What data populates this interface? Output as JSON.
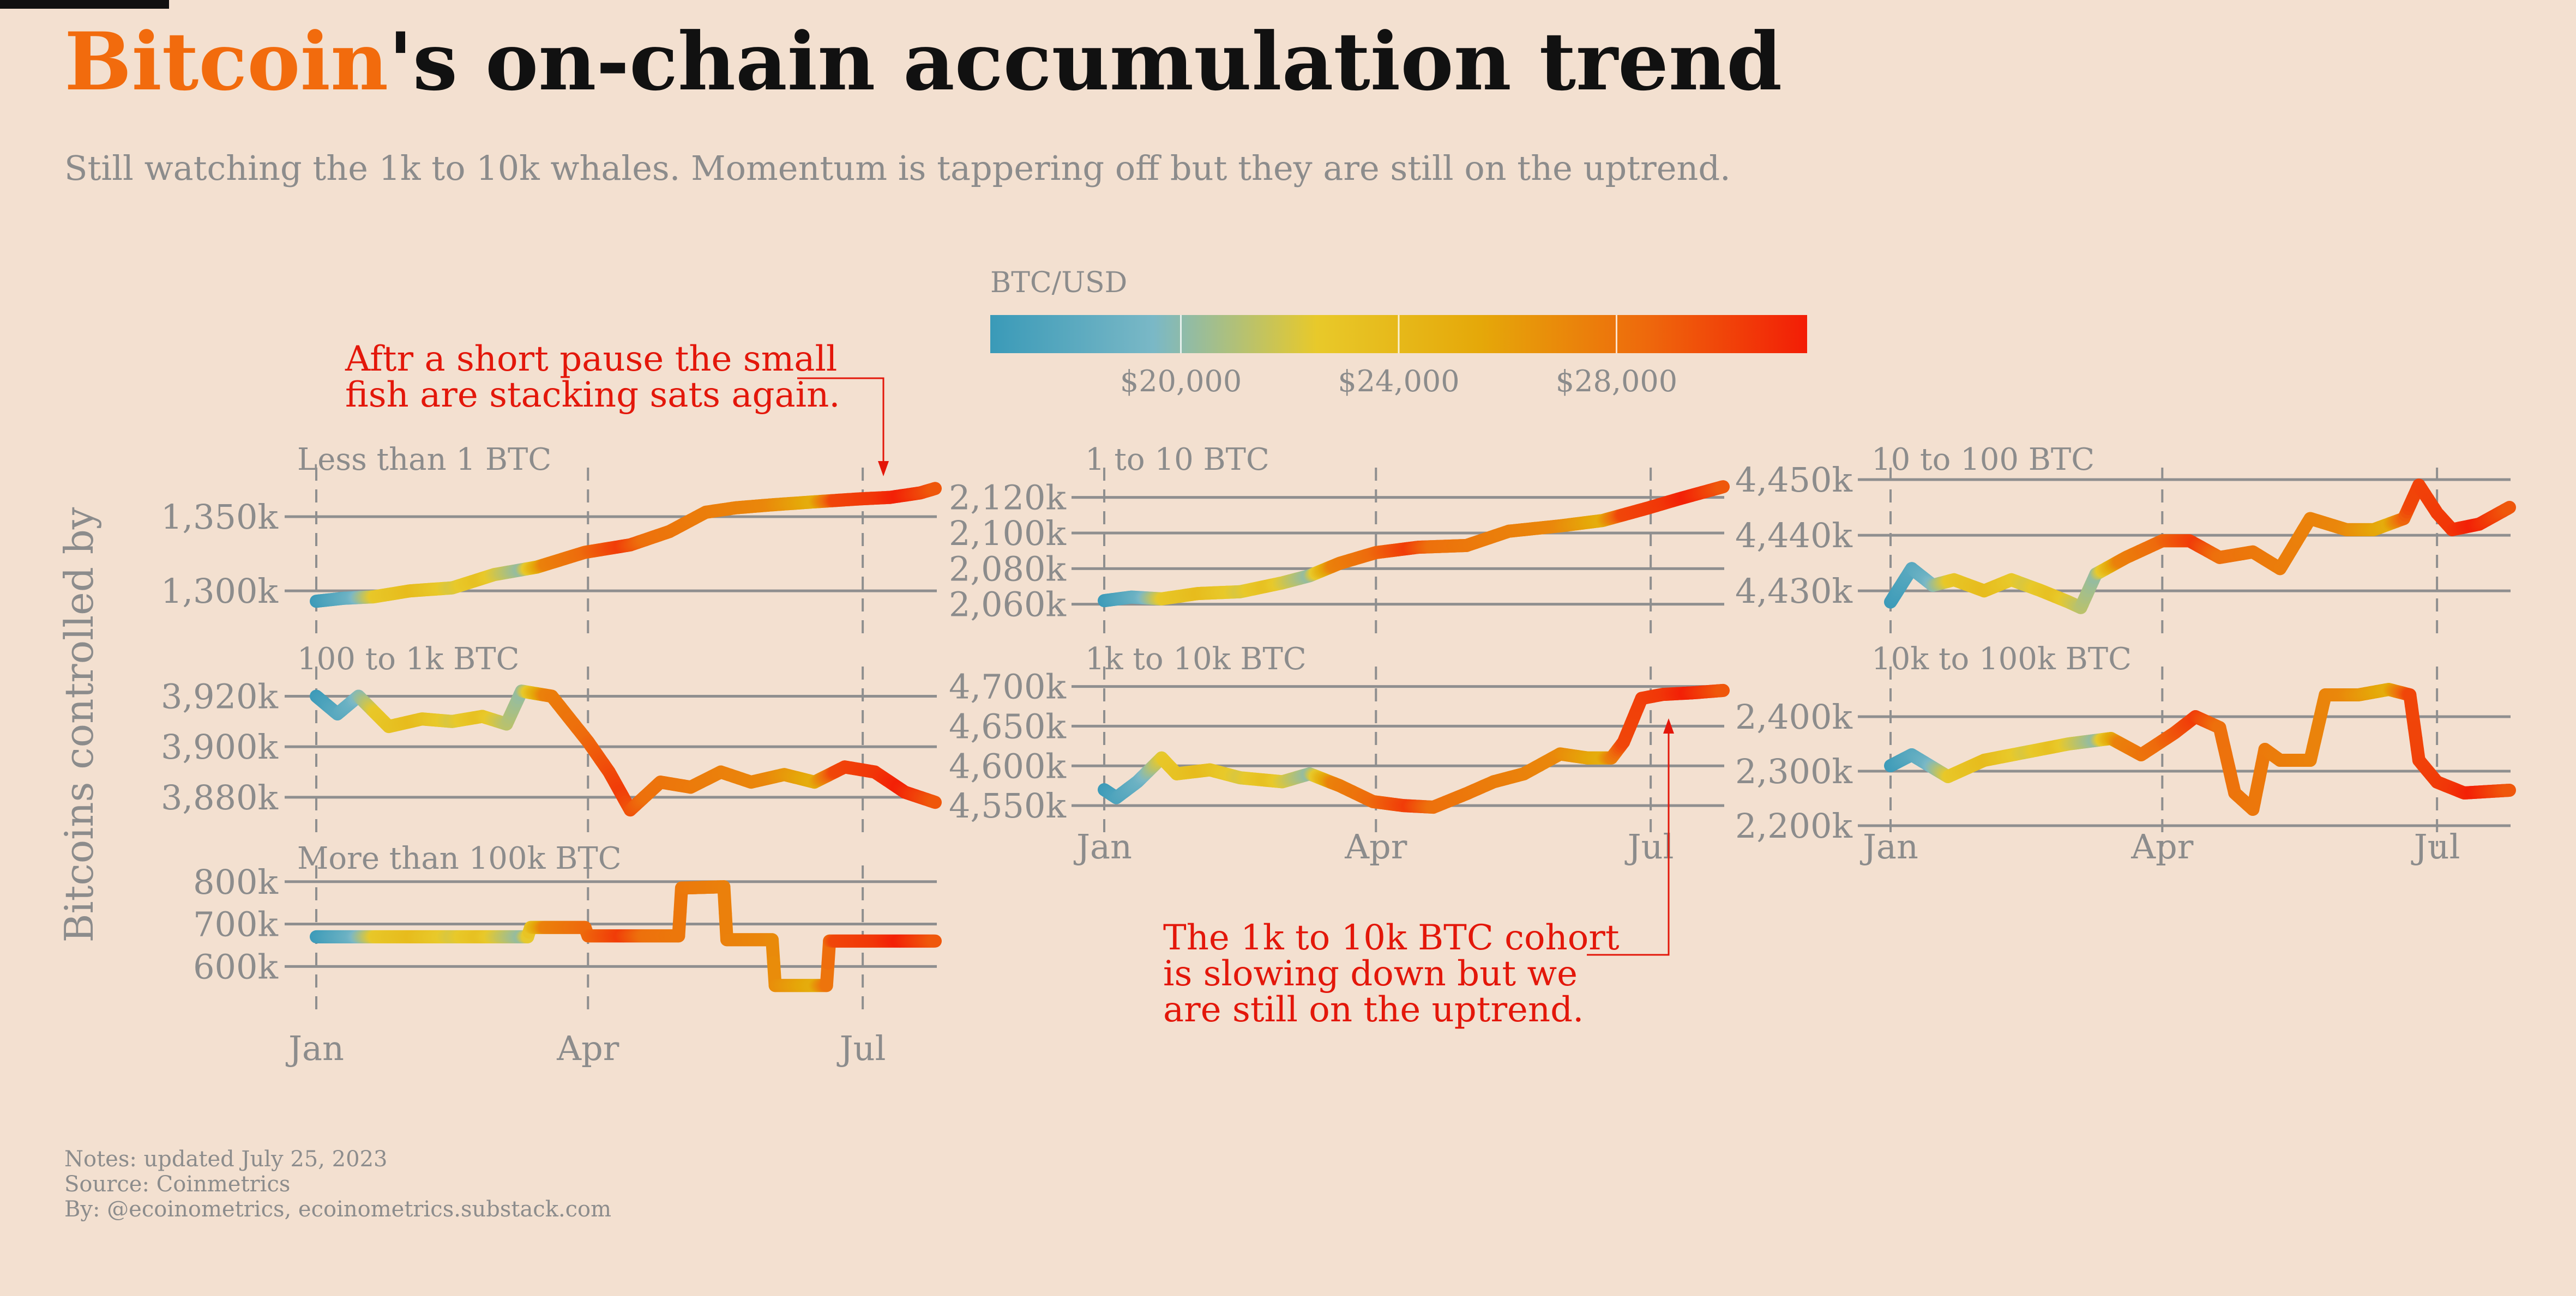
{
  "header": {
    "title_accent": "Bitcoin",
    "title_rest": "'s on-chain accumulation trend",
    "subtitle": "Still watching the 1k to 10k whales. Momentum is tappering off but they are still on the uptrend."
  },
  "notes": {
    "updated": "Notes: updated July 25, 2023",
    "source": "Source: Coinmetrics",
    "by": "By: @ecoinometrics, ecoinometrics.substack.com"
  },
  "colors": {
    "background": "#f3e0d0",
    "accent": "#f26b0d",
    "annotation": "#e3170a",
    "gradient": [
      "#3a9ab8",
      "#7ab8c6",
      "#e8c92a",
      "#e5a809",
      "#ee6a0c",
      "#f31d06"
    ]
  },
  "chart_data": {
    "type": "line",
    "ylabel": "Bitcoins controlled by",
    "x_ticks": [
      "Jan",
      "Apr",
      "Jul"
    ],
    "x_range": [
      "2023-01-01",
      "2023-07-25"
    ],
    "colorbar": {
      "title": "BTC/USD",
      "range": [
        16500,
        31500
      ],
      "ticks": [
        "$20,000",
        "$24,000",
        "$28,000"
      ],
      "tick_values": [
        20000,
        24000,
        28000
      ]
    },
    "price_waypoints": {
      "dates": [
        "2023-01-01",
        "2023-01-13",
        "2023-01-21",
        "2023-02-02",
        "2023-02-15",
        "2023-02-24",
        "2023-03-10",
        "2023-03-14",
        "2023-03-18",
        "2023-03-31",
        "2023-04-12",
        "2023-04-20",
        "2023-05-10",
        "2023-05-31",
        "2023-06-15",
        "2023-06-22",
        "2023-07-06",
        "2023-07-13",
        "2023-07-25"
      ],
      "btc_usd": [
        16600,
        18800,
        22700,
        23700,
        22100,
        23300,
        20200,
        24200,
        27400,
        28400,
        30300,
        28200,
        27600,
        27100,
        25100,
        29900,
        30500,
        31400,
        29200
      ]
    },
    "panels": [
      {
        "name": "Less than 1 BTC",
        "ylim": [
          1285,
          1375
        ],
        "y_ticks": [
          "1,300k",
          "1,350k"
        ],
        "y_tick_values": [
          1300,
          1350
        ],
        "dates": [
          "2023-01-01",
          "2023-01-10",
          "2023-01-20",
          "2023-02-01",
          "2023-02-15",
          "2023-03-01",
          "2023-03-15",
          "2023-03-31",
          "2023-04-15",
          "2023-04-28",
          "2023-05-10",
          "2023-05-20",
          "2023-06-01",
          "2023-06-15",
          "2023-06-30",
          "2023-07-10",
          "2023-07-20",
          "2023-07-25"
        ],
        "values": [
          1293,
          1295,
          1296,
          1300,
          1302,
          1311,
          1316,
          1326,
          1331,
          1340,
          1353,
          1356,
          1358,
          1360,
          1362,
          1363,
          1366,
          1369
        ]
      },
      {
        "name": "1 to 10 BTC",
        "ylim": [
          2055,
          2130
        ],
        "y_ticks": [
          "2,060k",
          "2,080k",
          "2,100k",
          "2,120k"
        ],
        "y_tick_values": [
          2060,
          2080,
          2100,
          2120
        ],
        "dates": [
          "2023-01-01",
          "2023-01-10",
          "2023-01-20",
          "2023-02-01",
          "2023-02-15",
          "2023-03-01",
          "2023-03-10",
          "2023-03-20",
          "2023-04-01",
          "2023-04-15",
          "2023-05-01",
          "2023-05-15",
          "2023-06-01",
          "2023-06-15",
          "2023-06-30",
          "2023-07-10",
          "2023-07-25"
        ],
        "values": [
          2062,
          2064,
          2063,
          2066,
          2067,
          2072,
          2076,
          2083,
          2089,
          2092,
          2093,
          2101,
          2104,
          2107,
          2114,
          2119,
          2126
        ]
      },
      {
        "name": "10 to 100 BTC",
        "ylim": [
          4426,
          4450
        ],
        "y_ticks": [
          "4,430k",
          "4,440k",
          "4,450k"
        ],
        "y_tick_values": [
          4430,
          4440,
          4450
        ],
        "dates": [
          "2023-01-01",
          "2023-01-08",
          "2023-01-15",
          "2023-01-22",
          "2023-02-01",
          "2023-02-10",
          "2023-02-20",
          "2023-03-01",
          "2023-03-05",
          "2023-03-10",
          "2023-03-20",
          "2023-04-01",
          "2023-04-10",
          "2023-04-20",
          "2023-05-01",
          "2023-05-10",
          "2023-05-20",
          "2023-06-01",
          "2023-06-10",
          "2023-06-20",
          "2023-06-25",
          "2023-07-01",
          "2023-07-06",
          "2023-07-15",
          "2023-07-25"
        ],
        "values": [
          4428,
          4434,
          4431,
          4432,
          4430,
          4432,
          4430,
          4428,
          4427,
          4433,
          4436,
          4439,
          4439,
          4436,
          4437,
          4434,
          4443,
          4441,
          4441,
          4443,
          4449,
          4444,
          4441,
          4442,
          4445
        ]
      },
      {
        "name": "100 to 1k BTC",
        "ylim": [
          3872,
          3927
        ],
        "y_ticks": [
          "3,880k",
          "3,900k",
          "3,920k"
        ],
        "y_tick_values": [
          3880,
          3900,
          3920
        ],
        "dates": [
          "2023-01-01",
          "2023-01-08",
          "2023-01-15",
          "2023-01-25",
          "2023-02-05",
          "2023-02-15",
          "2023-02-25",
          "2023-03-05",
          "2023-03-10",
          "2023-03-20",
          "2023-04-01",
          "2023-04-08",
          "2023-04-15",
          "2023-04-25",
          "2023-05-05",
          "2023-05-15",
          "2023-05-25",
          "2023-06-05",
          "2023-06-15",
          "2023-06-25",
          "2023-07-05",
          "2023-07-15",
          "2023-07-25"
        ],
        "values": [
          3920,
          3913,
          3920,
          3908,
          3911,
          3910,
          3912,
          3909,
          3922,
          3920,
          3902,
          3890,
          3875,
          3886,
          3884,
          3890,
          3886,
          3889,
          3886,
          3892,
          3890,
          3882,
          3878
        ]
      },
      {
        "name": "1k to 10k BTC",
        "ylim": [
          4535,
          4710
        ],
        "y_ticks": [
          "4,550k",
          "4,600k",
          "4,650k",
          "4,700k"
        ],
        "y_tick_values": [
          4550,
          4600,
          4650,
          4700
        ],
        "dates": [
          "2023-01-01",
          "2023-01-05",
          "2023-01-12",
          "2023-01-20",
          "2023-01-25",
          "2023-02-05",
          "2023-02-15",
          "2023-03-01",
          "2023-03-10",
          "2023-03-20",
          "2023-03-31",
          "2023-04-10",
          "2023-04-20",
          "2023-05-01",
          "2023-05-10",
          "2023-05-20",
          "2023-06-01",
          "2023-06-10",
          "2023-06-18",
          "2023-06-22",
          "2023-06-28",
          "2023-07-05",
          "2023-07-15",
          "2023-07-25"
        ],
        "values": [
          4570,
          4560,
          4580,
          4610,
          4590,
          4595,
          4585,
          4580,
          4590,
          4575,
          4555,
          4550,
          4548,
          4565,
          4580,
          4590,
          4615,
          4610,
          4610,
          4630,
          4685,
          4690,
          4692,
          4695
        ]
      },
      {
        "name": "10k to 100k BTC",
        "ylim": [
          2200,
          2470
        ],
        "y_ticks": [
          "2,200k",
          "2,300k",
          "2,400k"
        ],
        "y_tick_values": [
          2200,
          2300,
          2400
        ],
        "dates": [
          "2023-01-01",
          "2023-01-08",
          "2023-01-20",
          "2023-02-01",
          "2023-02-15",
          "2023-03-01",
          "2023-03-15",
          "2023-03-25",
          "2023-04-05",
          "2023-04-12",
          "2023-04-20",
          "2023-04-25",
          "2023-05-01",
          "2023-05-05",
          "2023-05-10",
          "2023-05-20",
          "2023-05-25",
          "2023-06-05",
          "2023-06-15",
          "2023-06-22",
          "2023-06-25",
          "2023-07-01",
          "2023-07-10",
          "2023-07-25"
        ],
        "values": [
          2310,
          2330,
          2290,
          2320,
          2335,
          2350,
          2360,
          2330,
          2370,
          2400,
          2380,
          2260,
          2230,
          2340,
          2320,
          2320,
          2440,
          2440,
          2450,
          2440,
          2320,
          2280,
          2260,
          2265
        ]
      },
      {
        "name": "More than 100k BTC",
        "ylim": [
          540,
          810
        ],
        "y_ticks": [
          "600k",
          "700k",
          "800k"
        ],
        "y_tick_values": [
          600,
          700,
          800
        ],
        "dates": [
          "2023-01-01",
          "2023-03-12",
          "2023-03-13",
          "2023-03-31",
          "2023-04-01",
          "2023-05-01",
          "2023-05-02",
          "2023-05-16",
          "2023-05-17",
          "2023-06-01",
          "2023-06-02",
          "2023-06-19",
          "2023-06-20",
          "2023-07-25"
        ],
        "values": [
          670,
          670,
          692,
          692,
          672,
          672,
          785,
          788,
          663,
          663,
          555,
          555,
          660,
          660
        ]
      }
    ],
    "annotations": [
      {
        "lines": [
          "Aftr a short pause the small",
          "fish are stacking sats again."
        ]
      },
      {
        "lines": [
          "The 1k to 10k BTC cohort",
          "is slowing down but we",
          "are still on the uptrend."
        ]
      }
    ]
  }
}
